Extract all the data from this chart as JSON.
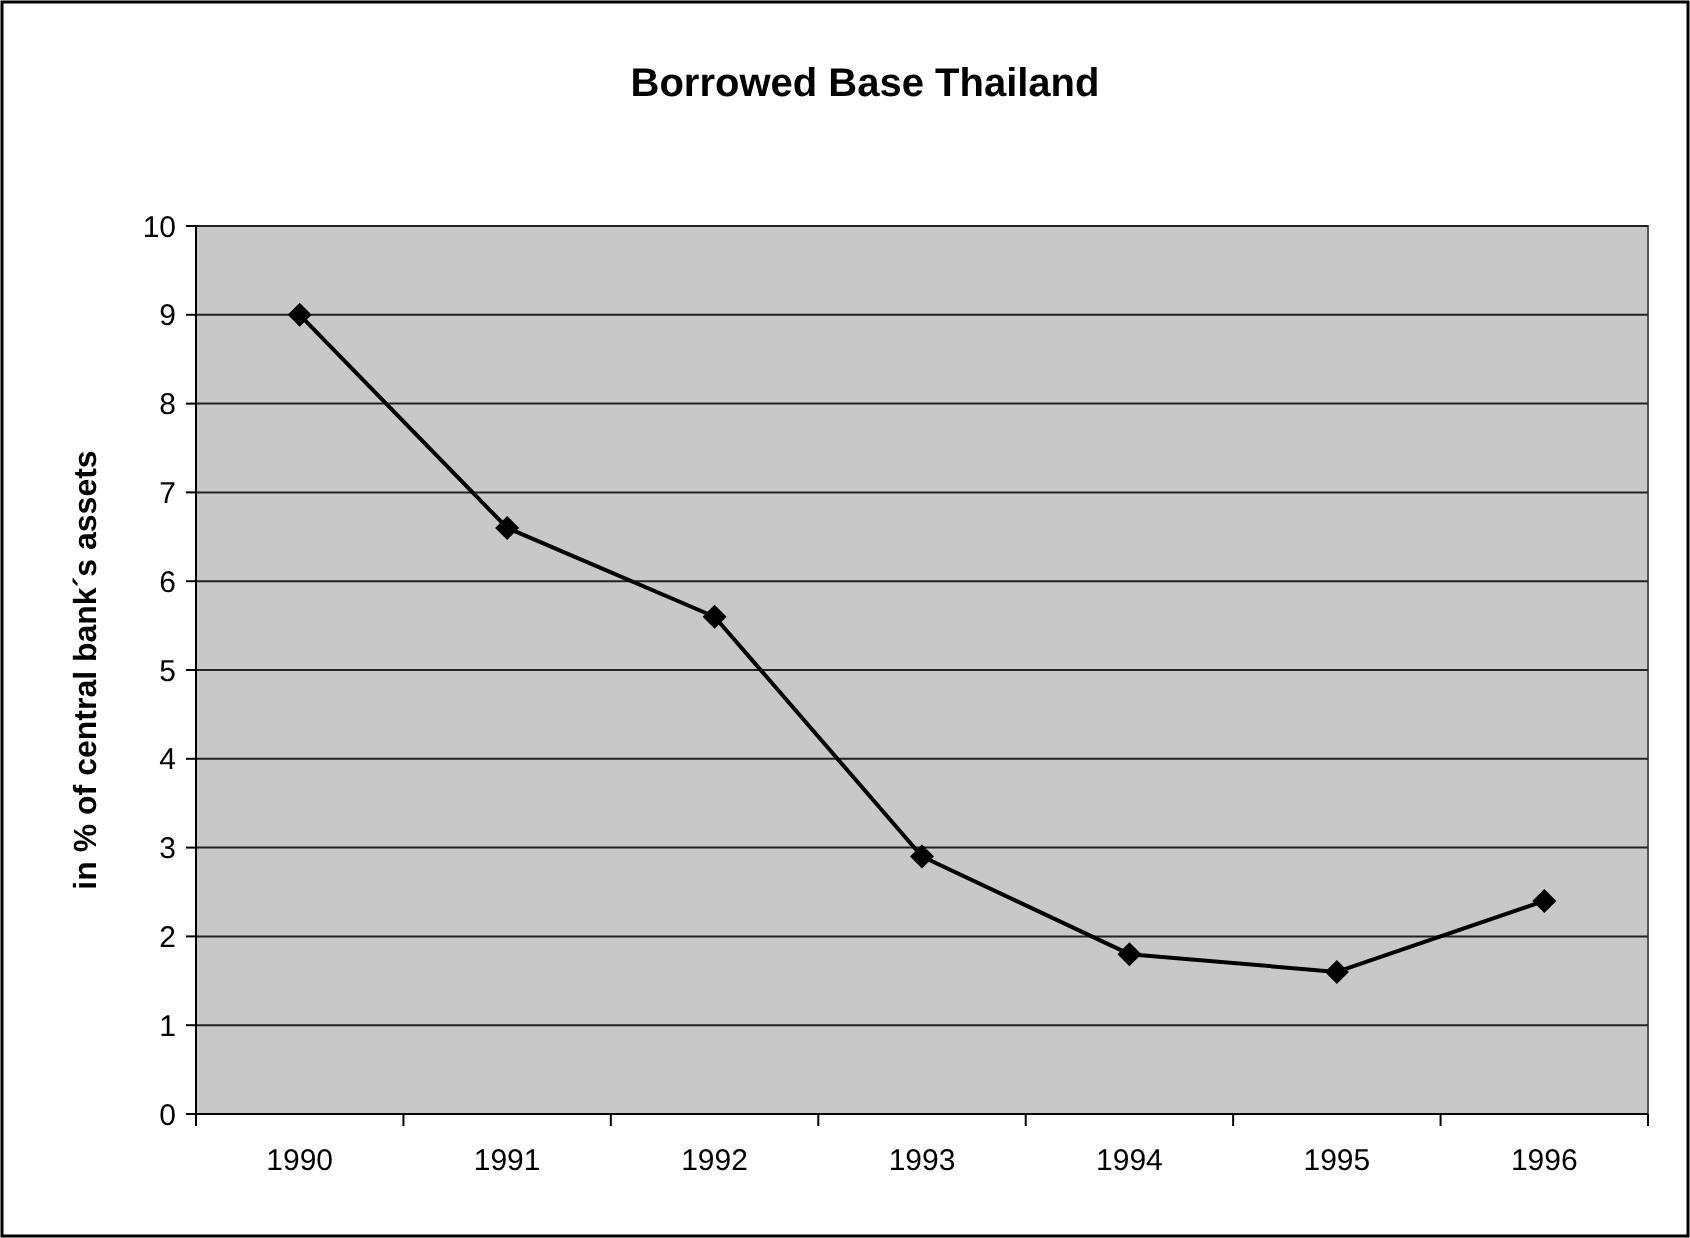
{
  "chart_data": {
    "type": "line",
    "title": "Borrowed Base Thailand",
    "ylabel": "in % of central bank´s assets",
    "categories": [
      "1990",
      "1991",
      "1992",
      "1993",
      "1994",
      "1995",
      "1996"
    ],
    "series": [
      {
        "color": "#000000",
        "values": [
          9.0,
          6.6,
          5.6,
          2.9,
          1.8,
          1.6,
          2.4
        ]
      }
    ],
    "ylim": [
      0,
      10
    ],
    "yticks": [
      0,
      1,
      2,
      3,
      4,
      5,
      6,
      7,
      8,
      9,
      10
    ],
    "grid": "y",
    "marker": "diamond",
    "line_style": "solid"
  }
}
